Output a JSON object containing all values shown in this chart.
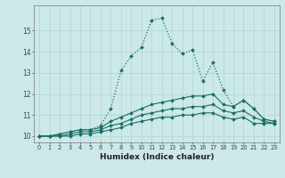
{
  "xlabel": "Humidex (Indice chaleur)",
  "background_color": "#cce8e8",
  "line_color": "#1a6e64",
  "grid_color": "#afd4d4",
  "xlim": [
    -0.5,
    23.5
  ],
  "ylim": [
    9.7,
    16.2
  ],
  "xticks": [
    0,
    1,
    2,
    3,
    4,
    5,
    6,
    7,
    8,
    9,
    10,
    11,
    12,
    13,
    14,
    15,
    16,
    17,
    18,
    19,
    20,
    21,
    22,
    23
  ],
  "yticks": [
    10,
    11,
    12,
    13,
    14,
    15
  ],
  "series_main": [
    10.0,
    10.0,
    10.1,
    10.2,
    10.3,
    10.3,
    10.5,
    11.3,
    13.1,
    13.8,
    14.2,
    15.5,
    15.6,
    14.4,
    13.9,
    14.1,
    12.6,
    13.5,
    12.2,
    11.4,
    11.7,
    11.3,
    10.8,
    10.7
  ],
  "series_2": [
    10.0,
    10.0,
    10.1,
    10.2,
    10.3,
    10.3,
    10.4,
    10.7,
    10.9,
    11.1,
    11.3,
    11.5,
    11.6,
    11.7,
    11.8,
    11.9,
    11.9,
    12.0,
    11.5,
    11.4,
    11.7,
    11.3,
    10.8,
    10.7
  ],
  "series_3": [
    10.0,
    10.0,
    10.0,
    10.1,
    10.2,
    10.2,
    10.3,
    10.5,
    10.6,
    10.8,
    11.0,
    11.1,
    11.2,
    11.3,
    11.3,
    11.4,
    11.4,
    11.5,
    11.2,
    11.1,
    11.2,
    10.9,
    10.7,
    10.6
  ],
  "series_4": [
    10.0,
    10.0,
    10.0,
    10.0,
    10.1,
    10.1,
    10.2,
    10.3,
    10.4,
    10.6,
    10.7,
    10.8,
    10.9,
    10.9,
    11.0,
    11.0,
    11.1,
    11.1,
    10.9,
    10.8,
    10.9,
    10.6,
    10.6,
    10.6
  ]
}
